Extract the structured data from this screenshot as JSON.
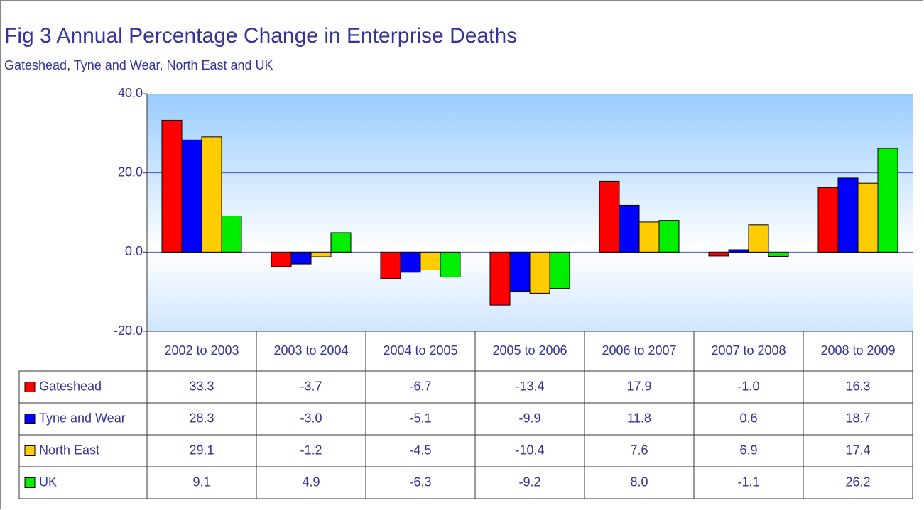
{
  "chart_data": {
    "type": "bar",
    "title": "Fig 3 Annual Percentage Change in Enterprise Deaths",
    "subtitle": "Gateshead, Tyne and Wear, North East and UK",
    "categories": [
      "2002 to 2003",
      "2003 to 2004",
      "2004 to 2005",
      "2005 to 2006",
      "2006 to 2007",
      "2007 to 2008",
      "2008 to 2009"
    ],
    "series": [
      {
        "name": "Gateshead",
        "color": "#ff0000",
        "values": [
          33.3,
          -3.7,
          -6.7,
          -13.4,
          17.9,
          -1.0,
          16.3
        ],
        "value_labels": [
          "33.3",
          "-3.7",
          "-6.7",
          "-13.4",
          "17.9",
          "-1.0",
          "16.3"
        ]
      },
      {
        "name": "Tyne and Wear",
        "color": "#0000ff",
        "values": [
          28.3,
          -3.0,
          -5.1,
          -9.9,
          11.8,
          0.6,
          18.7
        ],
        "value_labels": [
          "28.3",
          "-3.0",
          "-5.1",
          "-9.9",
          "11.8",
          "0.6",
          "18.7"
        ]
      },
      {
        "name": "North East",
        "color": "#ffcc00",
        "values": [
          29.1,
          -1.2,
          -4.5,
          -10.4,
          7.6,
          6.9,
          17.4
        ],
        "value_labels": [
          "29.1",
          "-1.2",
          "-4.5",
          "-10.4",
          "7.6",
          "6.9",
          "17.4"
        ]
      },
      {
        "name": "UK",
        "color": "#00ee00",
        "values": [
          9.1,
          4.9,
          -6.3,
          -9.2,
          8.0,
          -1.1,
          26.2
        ],
        "value_labels": [
          "9.1",
          "4.9",
          "-6.3",
          "-9.2",
          "8.0",
          "-1.1",
          "26.2"
        ]
      }
    ],
    "ylim": [
      -20,
      40
    ],
    "yticks": [
      {
        "value": -20,
        "label": "-20.0"
      },
      {
        "value": 0,
        "label": "0.0"
      },
      {
        "value": 20,
        "label": "20.0"
      },
      {
        "value": 40,
        "label": "40.0"
      }
    ],
    "grid": true
  }
}
